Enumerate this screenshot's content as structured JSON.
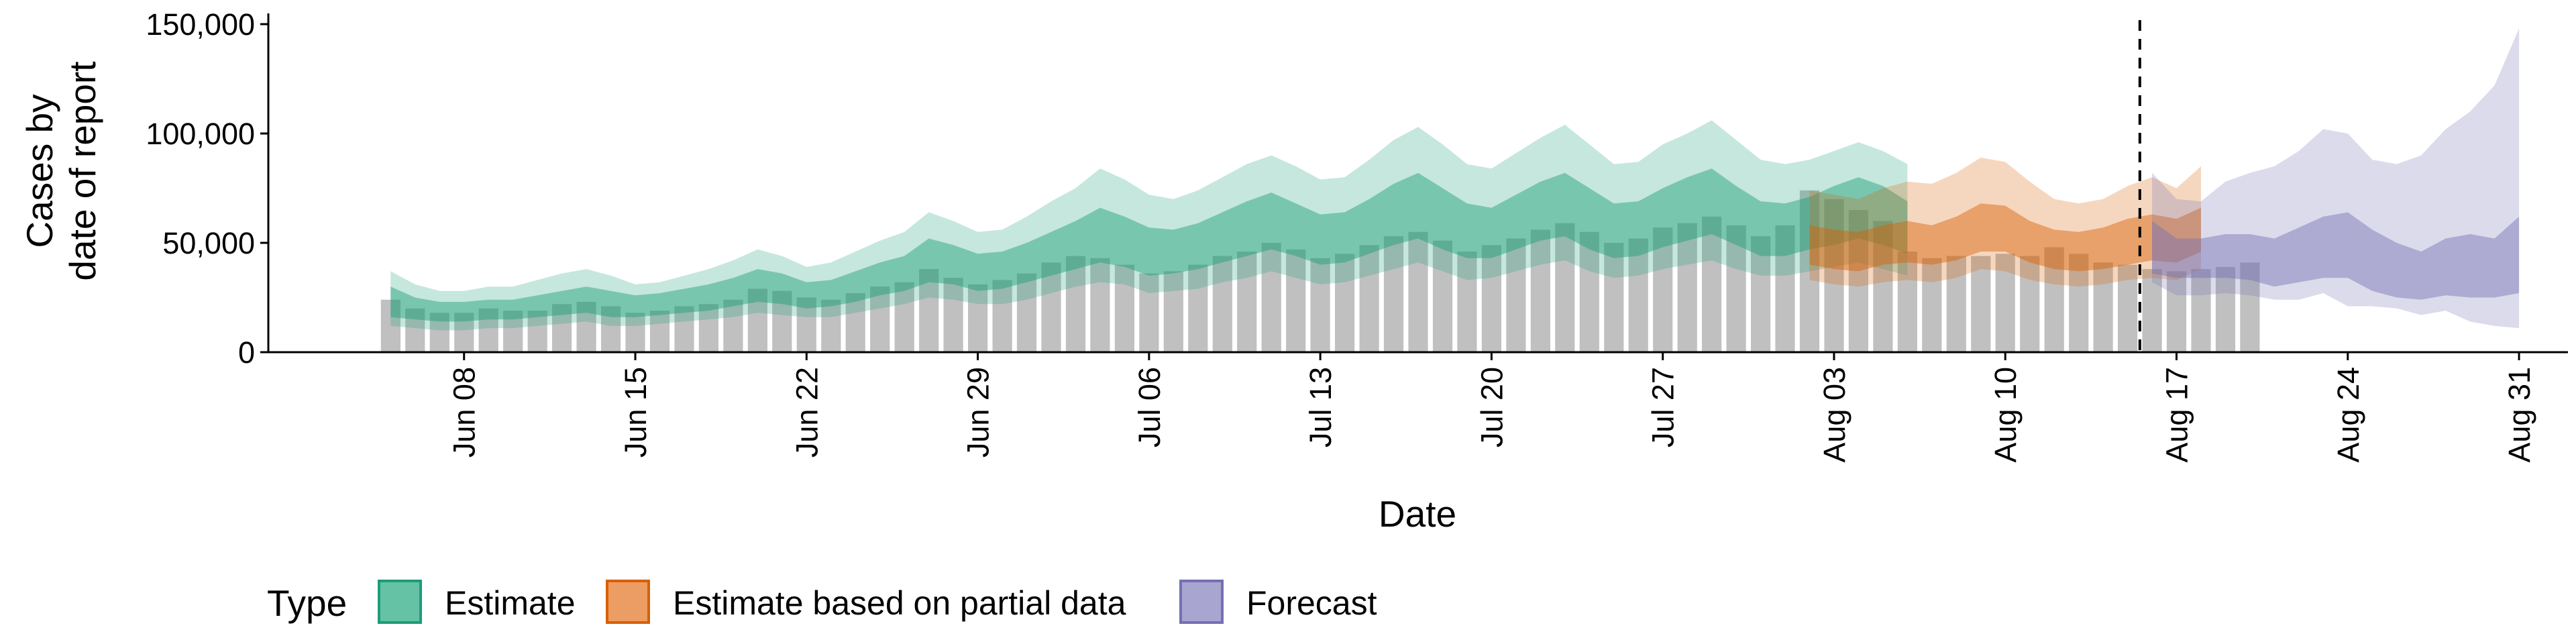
{
  "chart_data": {
    "type": "area",
    "xlabel": "Date",
    "ylabel_lines": [
      "Cases by",
      "date of report"
    ],
    "ylim": [
      0,
      150000
    ],
    "y_ticks": [
      0,
      50000,
      100000,
      150000
    ],
    "y_tick_labels": [
      "0",
      "50,000",
      "100,000",
      "150,000"
    ],
    "x_ticks": [
      "2020-06-08",
      "2020-06-15",
      "2020-06-22",
      "2020-06-29",
      "2020-07-06",
      "2020-07-13",
      "2020-07-20",
      "2020-07-27",
      "2020-08-03",
      "2020-08-10",
      "2020-08-17",
      "2020-08-24",
      "2020-08-31"
    ],
    "x_tick_labels": [
      "Jun 08",
      "Jun 15",
      "Jun 22",
      "Jun 29",
      "Jul 06",
      "Jul 13",
      "Jul 20",
      "Jul 27",
      "Aug 03",
      "Aug 10",
      "Aug 17",
      "Aug 24",
      "Aug 31"
    ],
    "xlim": [
      "2020-05-31",
      "2020-09-02"
    ],
    "forecast_date": "2020-08-15",
    "grid": false,
    "legend": {
      "title": "Type",
      "position": "bottom",
      "entries": [
        {
          "label": "Estimate",
          "fill": "#66c2a5",
          "stroke": "#1b9e77"
        },
        {
          "label": "Estimate based on partial data",
          "fill": "#ec9d63",
          "stroke": "#d95f02"
        },
        {
          "label": "Forecast",
          "fill": "#a8a5d0",
          "stroke": "#7570b3"
        }
      ]
    },
    "colors": {
      "observed_bars": "#c0c0c0",
      "Estimate": "#1b9e77",
      "Estimate based on partial data": "#d95f02",
      "Forecast": "#7570b3"
    },
    "observed": {
      "start": "2020-06-05",
      "values": [
        24000,
        20000,
        18000,
        18000,
        20000,
        19000,
        19000,
        22000,
        23000,
        21000,
        18000,
        19000,
        21000,
        22000,
        24000,
        29000,
        28000,
        25000,
        24000,
        27000,
        30000,
        32000,
        38000,
        34000,
        31000,
        33000,
        36000,
        41000,
        44000,
        43000,
        40000,
        36000,
        37000,
        40000,
        44000,
        46000,
        50000,
        47000,
        43000,
        45000,
        49000,
        53000,
        55000,
        51000,
        46000,
        49000,
        52000,
        56000,
        59000,
        55000,
        50000,
        52000,
        57000,
        59000,
        62000,
        58000,
        53000,
        58000,
        74000,
        70000,
        65000,
        60000,
        46000,
        43000,
        44000,
        44000,
        45000,
        44000,
        48000,
        45000,
        41000,
        40000,
        38000,
        37000,
        38000,
        39000,
        41000
      ]
    },
    "series": [
      {
        "name": "Estimate",
        "start": "2020-06-05",
        "median": [
          22000,
          20000,
          19000,
          19000,
          20000,
          20000,
          21000,
          23000,
          24000,
          22000,
          21000,
          22000,
          23000,
          25000,
          27000,
          30000,
          28000,
          26000,
          27000,
          30000,
          33000,
          36000,
          42000,
          40000,
          37000,
          38000,
          41000,
          45000,
          49000,
          52000,
          50000,
          46000,
          46000,
          48000,
          52000,
          56000,
          60000,
          56000,
          52000,
          52000,
          57000,
          62000,
          66000,
          60000,
          55000,
          54000,
          59000,
          64000,
          67000,
          60000,
          55000,
          56000,
          61000,
          65000,
          68000,
          62000,
          56000,
          55000,
          58000,
          62000,
          65000,
          62000,
          56000
        ],
        "lower50": [
          16000,
          15000,
          14000,
          14000,
          15000,
          15000,
          16000,
          17000,
          18000,
          16000,
          16000,
          17000,
          18000,
          19000,
          21000,
          23000,
          22000,
          20000,
          21000,
          23000,
          26000,
          28000,
          32000,
          31000,
          28000,
          29000,
          32000,
          35000,
          38000,
          41000,
          39000,
          35000,
          36000,
          38000,
          41000,
          44000,
          47000,
          44000,
          40000,
          41000,
          45000,
          49000,
          52000,
          47000,
          43000,
          43000,
          47000,
          51000,
          53000,
          47000,
          43000,
          44000,
          48000,
          51000,
          54000,
          49000,
          44000,
          44000,
          47000,
          49000,
          52000,
          49000,
          45000
        ],
        "upper50": [
          30000,
          25000,
          23000,
          23000,
          24000,
          24000,
          26000,
          28000,
          30000,
          28000,
          26000,
          27000,
          29000,
          31000,
          34000,
          38000,
          36000,
          32000,
          33000,
          37000,
          41000,
          44000,
          52000,
          49000,
          45000,
          46000,
          50000,
          55000,
          60000,
          66000,
          62000,
          57000,
          56000,
          59000,
          64000,
          69000,
          73000,
          68000,
          63000,
          64000,
          70000,
          77000,
          82000,
          75000,
          68000,
          66000,
          72000,
          78000,
          82000,
          75000,
          68000,
          69000,
          75000,
          80000,
          84000,
          76000,
          69000,
          68000,
          71000,
          76000,
          80000,
          76000,
          69000
        ],
        "lower90": [
          12000,
          11000,
          10000,
          10000,
          11000,
          11000,
          12000,
          13000,
          14000,
          12000,
          12000,
          13000,
          14000,
          15000,
          16000,
          18000,
          17000,
          16000,
          16000,
          18000,
          20000,
          22000,
          25000,
          24000,
          22000,
          22000,
          24000,
          27000,
          30000,
          32000,
          31000,
          27000,
          28000,
          29000,
          32000,
          34000,
          37000,
          34000,
          31000,
          32000,
          35000,
          38000,
          41000,
          37000,
          33000,
          34000,
          37000,
          40000,
          42000,
          37000,
          34000,
          35000,
          38000,
          40000,
          42000,
          38000,
          35000,
          35000,
          37000,
          39000,
          41000,
          38000,
          35000
        ],
        "upper90": [
          37000,
          31000,
          28000,
          28000,
          30000,
          30000,
          33000,
          36000,
          38000,
          35000,
          31000,
          32000,
          35000,
          38000,
          42000,
          47000,
          44000,
          39000,
          41000,
          46000,
          51000,
          55000,
          64000,
          60000,
          55000,
          56000,
          62000,
          69000,
          75000,
          84000,
          79000,
          72000,
          70000,
          74000,
          80000,
          86000,
          90000,
          85000,
          79000,
          80000,
          88000,
          97000,
          103000,
          95000,
          86000,
          84000,
          91000,
          98000,
          104000,
          95000,
          86000,
          87000,
          95000,
          100000,
          106000,
          97000,
          88000,
          86000,
          88000,
          92000,
          96000,
          92000,
          86000
        ]
      },
      {
        "name": "Estimate based on partial data",
        "start": "2020-08-02",
        "median": [
          47000,
          45000,
          44000,
          47000,
          48000,
          47000,
          50000,
          55000,
          54000,
          48000,
          45000,
          44000,
          45000,
          48000,
          50000,
          48000,
          55000
        ],
        "lower50": [
          40000,
          38000,
          37000,
          40000,
          41000,
          40000,
          42000,
          46000,
          46000,
          41000,
          38000,
          37000,
          38000,
          40000,
          42000,
          41000,
          46000
        ],
        "upper50": [
          58000,
          56000,
          55000,
          58000,
          60000,
          58000,
          62000,
          68000,
          67000,
          60000,
          56000,
          55000,
          57000,
          61000,
          63000,
          61000,
          66000
        ],
        "lower90": [
          33000,
          31000,
          30000,
          32000,
          33000,
          32000,
          34000,
          38000,
          37000,
          33000,
          31000,
          30000,
          31000,
          33000,
          34000,
          33000,
          38000
        ],
        "upper90": [
          74000,
          72000,
          70000,
          75000,
          78000,
          77000,
          82000,
          89000,
          87000,
          78000,
          70000,
          68000,
          70000,
          76000,
          80000,
          75000,
          85000
        ]
      },
      {
        "name": "Forecast",
        "start": "2020-08-16",
        "median": [
          45000,
          43000,
          42000,
          42000,
          41000,
          38000,
          40000,
          43000,
          49000,
          41000,
          36000,
          33000,
          38000,
          37000,
          38000,
          42000
        ],
        "lower50": [
          36000,
          34000,
          34000,
          34000,
          33000,
          30000,
          32000,
          34000,
          34000,
          28000,
          25000,
          24000,
          26000,
          25000,
          25000,
          27000
        ],
        "upper50": [
          60000,
          52000,
          52000,
          54000,
          54000,
          52000,
          57000,
          62000,
          64000,
          56000,
          50000,
          46000,
          52000,
          54000,
          52000,
          62000
        ],
        "lower90": [
          32000,
          26000,
          26000,
          27000,
          26000,
          24000,
          24000,
          27000,
          21000,
          21000,
          20000,
          17000,
          19000,
          14000,
          12000,
          11000
        ],
        "upper90": [
          82000,
          70000,
          69000,
          78000,
          82000,
          85000,
          92000,
          102000,
          100000,
          88000,
          86000,
          90000,
          102000,
          110000,
          122000,
          148000
        ]
      }
    ]
  }
}
